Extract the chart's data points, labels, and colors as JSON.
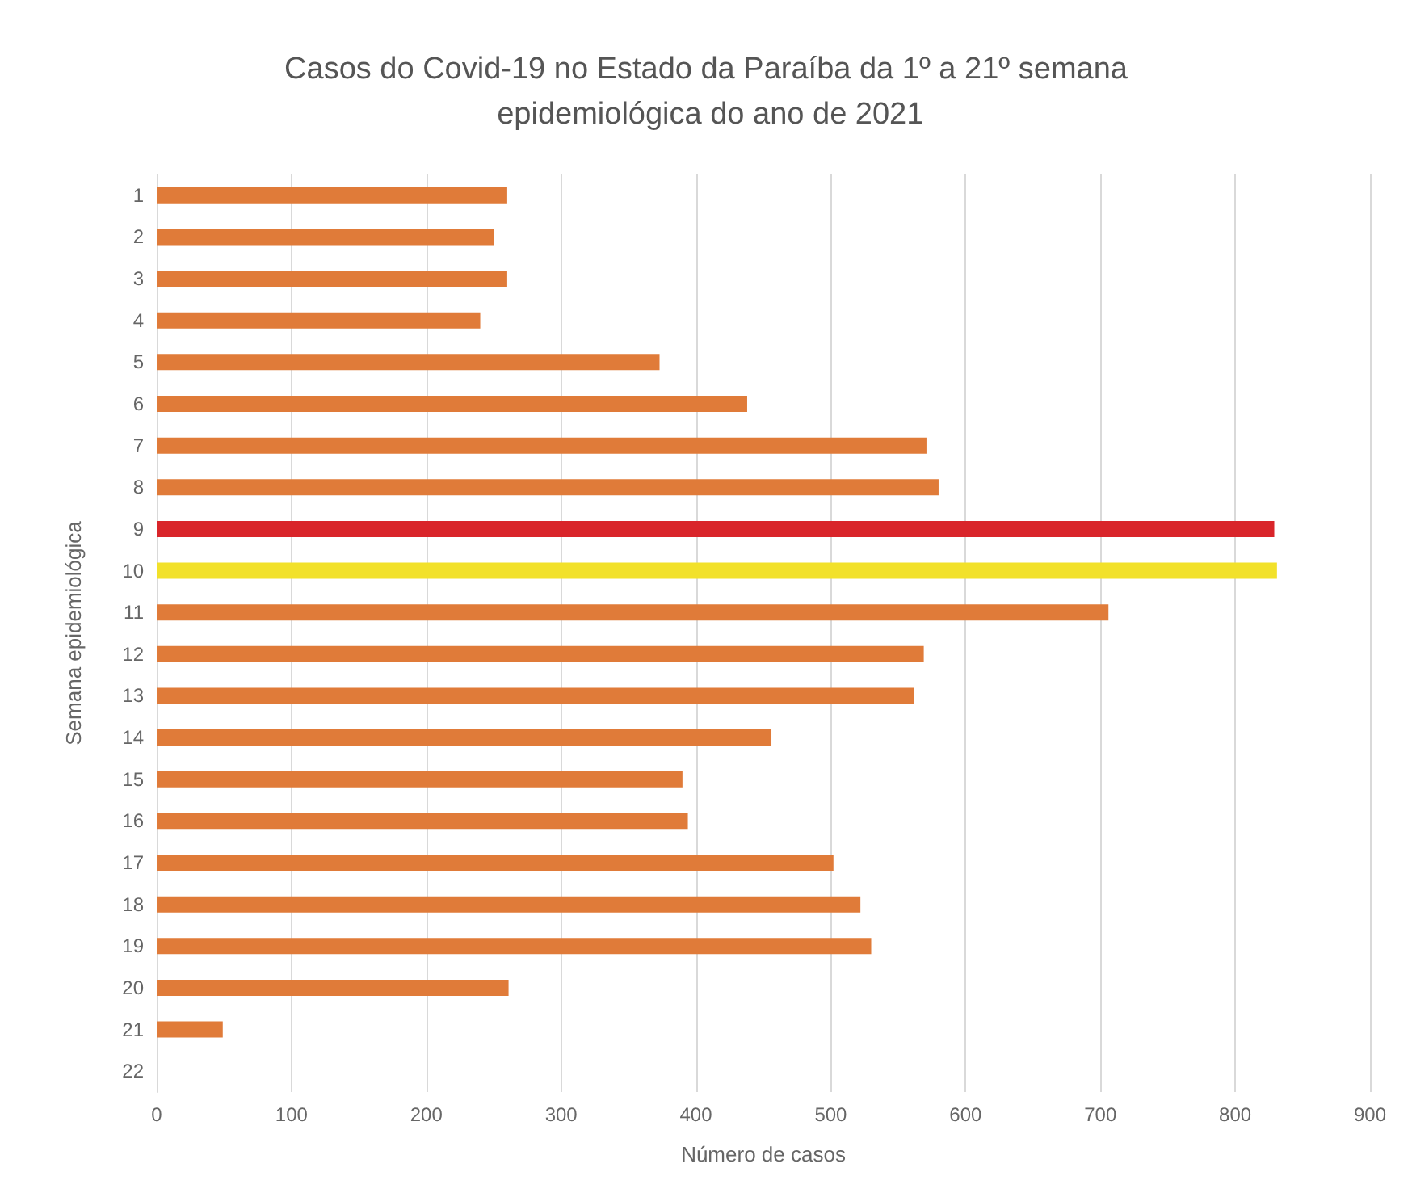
{
  "chart_data": {
    "type": "bar",
    "orientation": "horizontal",
    "title": "Casos do Covid-19 no Estado da Paraíba da 1º a 21º semana epidemiológica do ano de 2021",
    "xlabel": "Número de casos",
    "ylabel": "Semana epidemiológica",
    "categories": [
      "1",
      "2",
      "3",
      "4",
      "5",
      "6",
      "7",
      "8",
      "9",
      "10",
      "11",
      "12",
      "13",
      "14",
      "15",
      "16",
      "17",
      "18",
      "19",
      "20",
      "21",
      "22"
    ],
    "values": [
      260,
      250,
      260,
      240,
      373,
      438,
      571,
      580,
      829,
      831,
      706,
      569,
      562,
      456,
      390,
      394,
      502,
      522,
      530,
      261,
      49,
      0
    ],
    "colors": [
      "#e07b39",
      "#e07b39",
      "#e07b39",
      "#e07b39",
      "#e07b39",
      "#e07b39",
      "#e07b39",
      "#e07b39",
      "#d9252a",
      "#f2e12a",
      "#e07b39",
      "#e07b39",
      "#e07b39",
      "#e07b39",
      "#e07b39",
      "#e07b39",
      "#e07b39",
      "#e07b39",
      "#e07b39",
      "#e07b39",
      "#e07b39",
      "#e07b39"
    ],
    "xlim": [
      0,
      900
    ],
    "xticks": [
      0,
      100,
      200,
      300,
      400,
      500,
      600,
      700,
      800,
      900
    ],
    "grid": "x"
  }
}
